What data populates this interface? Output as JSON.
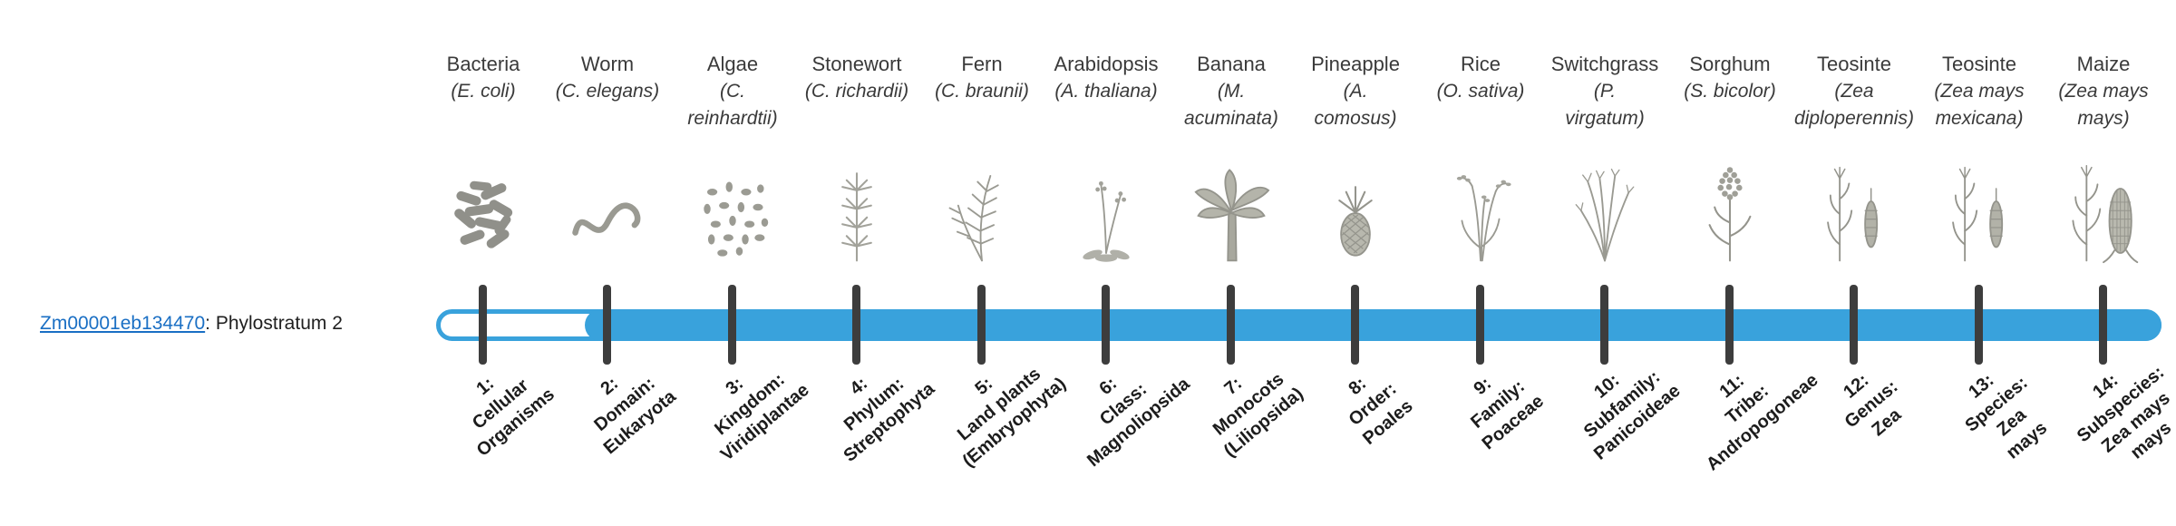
{
  "gene": {
    "id": "Zm00001eb134470",
    "suffix": ": Phylostratum 2",
    "phylostratum_shown": "Phylostratum 2"
  },
  "bar": {
    "fill_color": "#39a2dc",
    "unfilled_track_color": "#ffffff",
    "tick_color": "#3d3d3d",
    "filled_from_stratum": 2
  },
  "strata": [
    {
      "n": 1,
      "name": "Bacteria",
      "sci": "(E. coli)",
      "icon": "bacteria",
      "label": "1:\nCellular\nOrganisms"
    },
    {
      "n": 2,
      "name": "Worm",
      "sci": "(C. elegans)",
      "icon": "worm",
      "label": "2:\nDomain:\nEukaryota"
    },
    {
      "n": 3,
      "name": "Algae",
      "sci": "(C.\nreinhardtii)",
      "icon": "algae",
      "label": "3:\nKingdom:\nViridiplantae"
    },
    {
      "n": 4,
      "name": "Stonewort",
      "sci": "(C. richardii)",
      "icon": "stonewort",
      "label": "4:\nPhylum:\nStreptophyta"
    },
    {
      "n": 5,
      "name": "Fern",
      "sci": "(C. braunii)",
      "icon": "fern",
      "label": "5:\nLand plants\n(Embryophyta)"
    },
    {
      "n": 6,
      "name": "Arabidopsis",
      "sci": "(A. thaliana)",
      "icon": "arabidopsis",
      "label": "6:\nClass:\nMagnoliopsida"
    },
    {
      "n": 7,
      "name": "Banana",
      "sci": "(M.\nacuminata)",
      "icon": "banana",
      "label": "7:\nMonocots\n(Liliopsida)"
    },
    {
      "n": 8,
      "name": "Pineapple",
      "sci": "(A.\ncomosus)",
      "icon": "pineapple",
      "label": "8:\nOrder:\nPoales"
    },
    {
      "n": 9,
      "name": "Rice",
      "sci": "(O. sativa)",
      "icon": "rice",
      "label": "9:\nFamily:\nPoaceae"
    },
    {
      "n": 10,
      "name": "Switchgrass",
      "sci": "(P.\nvirgatum)",
      "icon": "switchgrass",
      "label": "10:\nSubfamily:\nPanicoideae"
    },
    {
      "n": 11,
      "name": "Sorghum",
      "sci": "(S. bicolor)",
      "icon": "sorghum",
      "label": "11:\nTribe:\nAndropogoneae"
    },
    {
      "n": 12,
      "name": "Teosinte",
      "sci": "(Zea\ndiploperennis)",
      "icon": "teosinte",
      "label": "12:\nGenus:\nZea"
    },
    {
      "n": 13,
      "name": "Teosinte",
      "sci": "(Zea mays\nmexicana)",
      "icon": "teosinte",
      "label": "13:\nSpecies:\nZea\nmays"
    },
    {
      "n": 14,
      "name": "Maize",
      "sci": "(Zea mays\nmays)",
      "icon": "maize",
      "label": "14:\nSubspecies:\nZea mays\nmays"
    }
  ]
}
